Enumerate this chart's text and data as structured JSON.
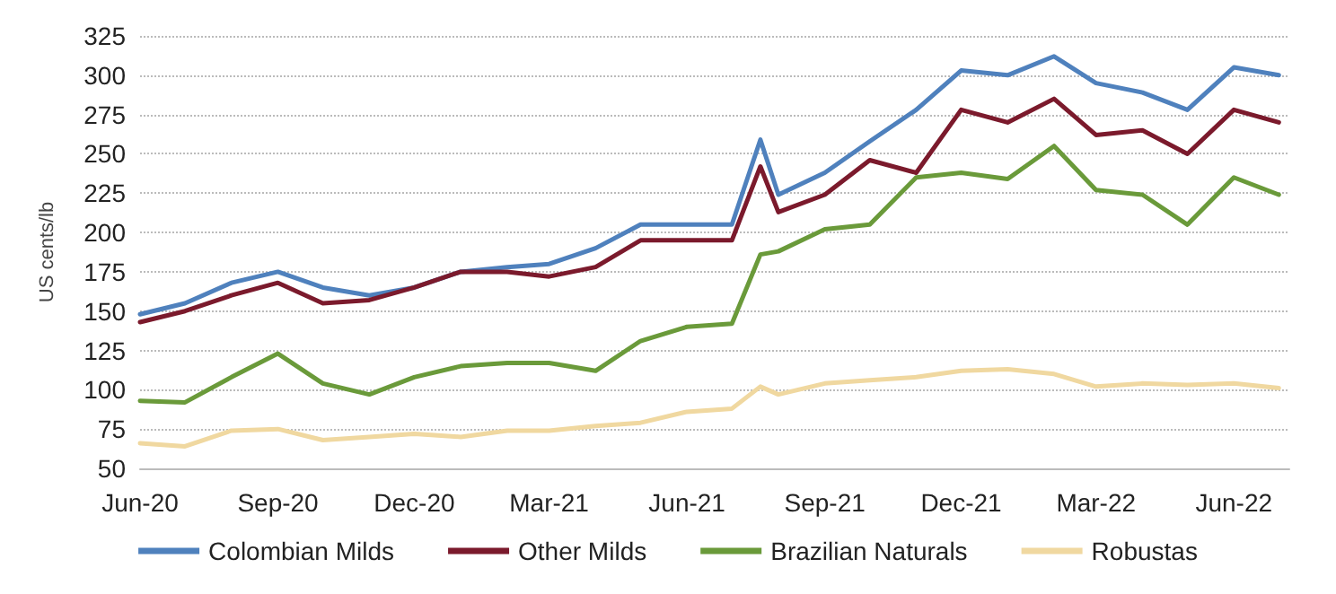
{
  "chart_data": {
    "type": "line",
    "ylabel": "US cents/lb",
    "x": [
      "2020-06-01",
      "2020-07-01",
      "2020-08-01",
      "2020-09-01",
      "2020-10-01",
      "2020-11-01",
      "2020-12-01",
      "2021-01-01",
      "2021-02-01",
      "2021-03-01",
      "2021-04-01",
      "2021-05-01",
      "2021-06-01",
      "2021-07-01",
      "2021-07-20",
      "2021-08-01",
      "2021-09-01",
      "2021-10-01",
      "2021-11-01",
      "2021-12-01",
      "2022-01-01",
      "2022-02-01",
      "2022-03-01",
      "2022-04-01",
      "2022-05-01",
      "2022-06-01",
      "2022-07-01"
    ],
    "series": [
      {
        "name": "Colombian Milds",
        "color": "#4f81bd",
        "values": [
          148,
          155,
          168,
          175,
          165,
          160,
          165,
          175,
          178,
          180,
          190,
          205,
          205,
          205,
          259,
          224,
          238,
          258,
          278,
          303,
          300,
          312,
          295,
          289,
          278,
          305,
          300
        ]
      },
      {
        "name": "Other Milds",
        "color": "#7b1a2c",
        "values": [
          143,
          150,
          160,
          168,
          155,
          157,
          165,
          175,
          175,
          172,
          178,
          195,
          195,
          195,
          242,
          213,
          224,
          246,
          238,
          278,
          270,
          285,
          262,
          265,
          250,
          278,
          270
        ]
      },
      {
        "name": "Brazilian Naturals",
        "color": "#6a9a3a",
        "values": [
          93,
          92,
          108,
          123,
          104,
          97,
          108,
          115,
          117,
          117,
          112,
          131,
          140,
          142,
          186,
          188,
          202,
          205,
          235,
          238,
          234,
          255,
          227,
          224,
          205,
          235,
          224
        ]
      },
      {
        "name": "Robustas",
        "color": "#f0d8a0",
        "values": [
          66,
          64,
          74,
          75,
          68,
          70,
          72,
          70,
          74,
          74,
          77,
          79,
          86,
          88,
          102,
          97,
          104,
          106,
          108,
          112,
          113,
          110,
          102,
          104,
          103,
          104,
          101
        ]
      }
    ],
    "xlim": [
      "2020-06-01",
      "2022-07-08"
    ],
    "xticks": [
      {
        "value": "2020-06-01",
        "label": "Jun-20"
      },
      {
        "value": "2020-09-01",
        "label": "Sep-20"
      },
      {
        "value": "2020-12-01",
        "label": "Dec-20"
      },
      {
        "value": "2021-03-01",
        "label": "Mar-21"
      },
      {
        "value": "2021-06-01",
        "label": "Jun-21"
      },
      {
        "value": "2021-09-01",
        "label": "Sep-21"
      },
      {
        "value": "2021-12-01",
        "label": "Dec-21"
      },
      {
        "value": "2022-03-01",
        "label": "Mar-22"
      },
      {
        "value": "2022-06-01",
        "label": "Jun-22"
      }
    ],
    "ylim": [
      50,
      325
    ],
    "yticks": [
      50,
      75,
      100,
      125,
      150,
      175,
      200,
      225,
      250,
      275,
      300,
      325
    ],
    "grid": "y",
    "legend": "bottom",
    "marker": "none",
    "line_style": "solid"
  }
}
